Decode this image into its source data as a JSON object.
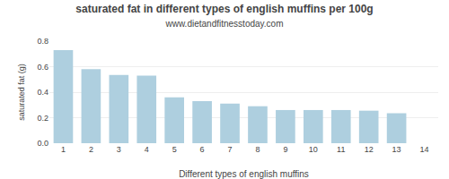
{
  "chart_data": {
    "type": "bar",
    "title": "saturated fat in different types of english muffins per 100g",
    "subtitle": "www.dietandfitnesstoday.com",
    "xlabel": "Different types of english muffins",
    "ylabel": "saturated fat (g)",
    "categories": [
      1,
      2,
      3,
      4,
      5,
      6,
      7,
      8,
      9,
      10,
      11,
      12,
      13,
      14
    ],
    "values": [
      0.73,
      0.58,
      0.535,
      0.53,
      0.36,
      0.33,
      0.31,
      0.29,
      0.26,
      0.26,
      0.26,
      0.255,
      0.235,
      0.0
    ],
    "color": "#aecfdf",
    "ylim": [
      0.0,
      0.8
    ],
    "yticks": [
      {
        "value": 0.0,
        "label": "0.0"
      },
      0.2,
      0.4,
      0.6,
      0.8
    ],
    "grid": true
  }
}
